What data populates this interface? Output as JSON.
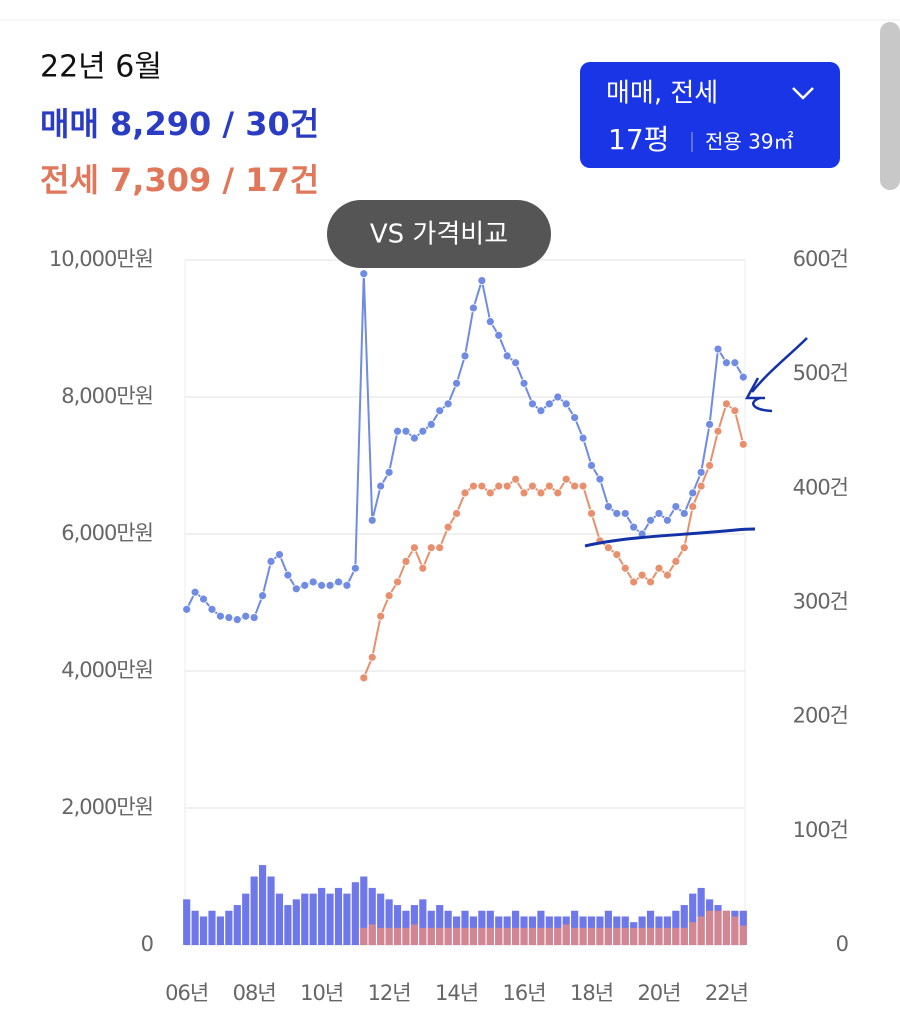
{
  "summary": {
    "period": "22년 6월",
    "sale": "매매 8,290 / 30건",
    "jeonse": "전세 7,309 / 17건"
  },
  "filter": {
    "deal": "매매, 전세",
    "size": "17평",
    "area": "전용 39㎡"
  },
  "compare_button": "VS 가격비교",
  "chart_data": {
    "type": "combo",
    "x": [
      6,
      6.25,
      6.5,
      6.75,
      7,
      7.25,
      7.5,
      7.75,
      8,
      8.25,
      8.5,
      8.75,
      9,
      9.25,
      9.5,
      9.75,
      10,
      10.25,
      10.5,
      10.75,
      11,
      11.25,
      11.5,
      11.75,
      12,
      12.25,
      12.5,
      12.75,
      13,
      13.25,
      13.5,
      13.75,
      14,
      14.25,
      14.5,
      14.75,
      15,
      15.25,
      15.5,
      15.75,
      16,
      16.25,
      16.5,
      16.75,
      17,
      17.25,
      17.5,
      17.75,
      18,
      18.25,
      18.5,
      18.75,
      19,
      19.25,
      19.5,
      19.75,
      20,
      20.25,
      20.5,
      20.75,
      21,
      21.25,
      21.5,
      21.75,
      22,
      22.25,
      22.5
    ],
    "xlim": [
      5.95,
      22.55
    ],
    "xticks": [
      {
        "value": 6,
        "label": "06년"
      },
      {
        "value": 8,
        "label": "08년"
      },
      {
        "value": 10,
        "label": "10년"
      },
      {
        "value": 12,
        "label": "12년"
      },
      {
        "value": 14,
        "label": "14년"
      },
      {
        "value": 16,
        "label": "16년"
      },
      {
        "value": 18,
        "label": "18년"
      },
      {
        "value": 20,
        "label": "20년"
      },
      {
        "value": 22,
        "label": "22년"
      }
    ],
    "ylim": [
      0,
      10000
    ],
    "yticks": [
      0,
      {
        "value": 2000,
        "label": "2,000만원"
      },
      {
        "value": 4000,
        "label": "4,000만원"
      },
      {
        "value": 6000,
        "label": "6,000만원"
      },
      {
        "value": 8000,
        "label": "8,000만원"
      },
      {
        "value": 10000,
        "label": "10,000만원"
      }
    ],
    "y2lim": [
      0,
      600
    ],
    "y2ticks": [
      0,
      {
        "value": 100,
        "label": "100건"
      },
      {
        "value": 200,
        "label": "200건"
      },
      {
        "value": 300,
        "label": "300건"
      },
      {
        "value": 400,
        "label": "400건"
      },
      {
        "value": 500,
        "label": "500건"
      },
      {
        "value": 600,
        "label": "600건"
      }
    ],
    "grid": true,
    "series": [
      {
        "type": "bar",
        "axis": "y2",
        "color": "#5560e6",
        "values": [
          40,
          30,
          25,
          30,
          25,
          30,
          35,
          45,
          60,
          70,
          60,
          45,
          35,
          40,
          45,
          45,
          50,
          45,
          50,
          45,
          55,
          60,
          50,
          45,
          40,
          35,
          30,
          35,
          40,
          30,
          35,
          30,
          25,
          30,
          25,
          30,
          30,
          25,
          25,
          30,
          25,
          25,
          30,
          25,
          25,
          25,
          30,
          25,
          25,
          25,
          30,
          25,
          25,
          20,
          25,
          30,
          25,
          25,
          30,
          35,
          45,
          50,
          40,
          35,
          30,
          30,
          30
        ]
      },
      {
        "type": "bar",
        "axis": "y2",
        "color": "#ea8a7c",
        "values": [
          null,
          null,
          null,
          null,
          null,
          null,
          null,
          null,
          null,
          null,
          null,
          null,
          null,
          null,
          null,
          null,
          null,
          null,
          null,
          null,
          null,
          15,
          18,
          15,
          15,
          15,
          15,
          18,
          15,
          15,
          15,
          15,
          15,
          15,
          15,
          15,
          15,
          15,
          15,
          15,
          15,
          15,
          15,
          15,
          15,
          18,
          15,
          15,
          15,
          15,
          15,
          15,
          15,
          15,
          15,
          15,
          15,
          15,
          15,
          15,
          20,
          25,
          30,
          30,
          30,
          25,
          17
        ]
      },
      {
        "type": "line",
        "color": "#6f8be3",
        "values": [
          4900,
          5150,
          5050,
          4900,
          4800,
          4780,
          4750,
          4800,
          4780,
          5100,
          5600,
          5700,
          5400,
          5200,
          5250,
          5300,
          5250,
          5250,
          5300,
          5250,
          5500,
          9800,
          6200,
          6700,
          6900,
          7500,
          7500,
          7400,
          7500,
          7600,
          7800,
          7900,
          8200,
          8600,
          9300,
          9700,
          9100,
          8900,
          8600,
          8500,
          8200,
          7900,
          7800,
          7900,
          8000,
          7900,
          7700,
          7400,
          7000,
          6800,
          6400,
          6300,
          6300,
          6100,
          6000,
          6200,
          6300,
          6200,
          6400,
          6300,
          6600,
          6900,
          7600,
          8700,
          8500,
          8500,
          8290
        ]
      },
      {
        "type": "line",
        "color": "#e8906e",
        "values": [
          null,
          null,
          null,
          null,
          null,
          null,
          null,
          null,
          null,
          null,
          null,
          null,
          null,
          null,
          null,
          null,
          null,
          null,
          null,
          null,
          null,
          3900,
          4200,
          4800,
          5100,
          5300,
          5600,
          5800,
          5500,
          5800,
          5800,
          6100,
          6300,
          6600,
          6700,
          6700,
          6600,
          6700,
          6700,
          6800,
          6600,
          6700,
          6600,
          6700,
          6600,
          6800,
          6700,
          6700,
          6300,
          5900,
          5800,
          5700,
          5500,
          5300,
          5400,
          5300,
          5500,
          5400,
          5600,
          5800,
          6400,
          6700,
          7000,
          7500,
          7900,
          7800,
          7309
        ]
      }
    ]
  }
}
